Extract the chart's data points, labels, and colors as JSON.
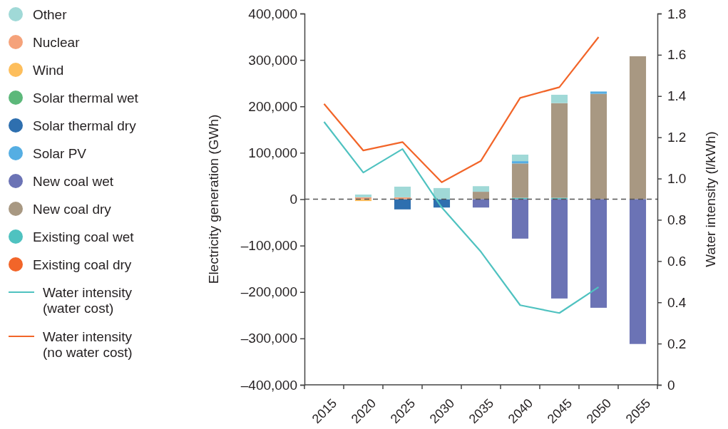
{
  "chart_data": {
    "type": "bar",
    "stacked": true,
    "ylabel": "Electricity generation (GWh)",
    "y2label": "Water intensity (l/kWh)",
    "categories": [
      "2015",
      "2020",
      "2025",
      "2030",
      "2035",
      "2040",
      "2045",
      "2050",
      "2055"
    ],
    "ylim": [
      -400000,
      400000
    ],
    "yticks": [
      {
        "value": -400000,
        "label": "–400,000"
      },
      {
        "value": -300000,
        "label": "–300,000"
      },
      {
        "value": -200000,
        "label": "–200,000"
      },
      {
        "value": -100000,
        "label": "–100,000"
      },
      0,
      {
        "value": 100000,
        "label": "100,000"
      },
      {
        "value": 200000,
        "label": "200,000"
      },
      {
        "value": 300000,
        "label": "300,000"
      },
      {
        "value": 400000,
        "label": "400,000"
      }
    ],
    "y2lim": [
      0,
      1.8
    ],
    "y2ticks": [
      0,
      0.2,
      0.4,
      0.6,
      0.8,
      {
        "value": 1,
        "label": "1.0"
      },
      1.2,
      1.4,
      1.6,
      1.8
    ],
    "ref_lines": [
      {
        "axis": "y",
        "value": 0,
        "color": "#555555",
        "line_style": "dashed"
      }
    ],
    "legend": "left",
    "marker": "none",
    "grid": false,
    "series": [
      {
        "name": "Existing coal dry",
        "color": "#f26529",
        "values": [
          null,
          0,
          0,
          0,
          0,
          0,
          0,
          0,
          0
        ]
      },
      {
        "name": "Existing coal wet",
        "color": "#4fc2c0",
        "values": [
          null,
          0,
          0,
          0,
          0,
          3000,
          3000,
          0,
          0
        ]
      },
      {
        "name": "New coal dry",
        "color": "#a89882",
        "values": [
          null,
          0,
          0,
          0,
          16000,
          74000,
          204000,
          227000,
          308000
        ]
      },
      {
        "name": "New coal wet",
        "color": "#6b73b5",
        "values": [
          null,
          0,
          0,
          0,
          -18000,
          -85000,
          -214000,
          -234000,
          -312000
        ]
      },
      {
        "name": "Solar PV",
        "color": "#55aee3",
        "values": [
          null,
          0,
          0,
          0,
          0,
          5000,
          0,
          5000,
          0
        ]
      },
      {
        "name": "Solar thermal dry",
        "color": "#2e6faf",
        "values": [
          null,
          0,
          -22000,
          -18000,
          0,
          0,
          0,
          0,
          0
        ]
      },
      {
        "name": "Solar thermal wet",
        "color": "#5cb87a",
        "values": [
          null,
          0,
          0,
          0,
          0,
          0,
          0,
          0,
          0
        ]
      },
      {
        "name": "Wind",
        "color": "#fdbe5c",
        "values": [
          null,
          -4000,
          0,
          0,
          0,
          0,
          0,
          0,
          0
        ]
      },
      {
        "name": "Nuclear",
        "color": "#f5a27a",
        "values": [
          null,
          4000,
          4000,
          0,
          0,
          0,
          0,
          0,
          0
        ]
      },
      {
        "name": "Other",
        "color": "#a0d9d7",
        "values": [
          null,
          6000,
          23000,
          24000,
          12000,
          14000,
          18000,
          0,
          0
        ]
      },
      {
        "name": "Water intensity\n(water cost)",
        "type": "line",
        "axis": "y2",
        "color": "#4fc2c0",
        "values": [
          1.275,
          1.029,
          1.143,
          0.86,
          0.645,
          0.386,
          0.348,
          0.474,
          null
        ]
      },
      {
        "name": "Water intensity\n(no water cost)",
        "type": "line",
        "axis": "y2",
        "color": "#f26529",
        "values": [
          1.362,
          1.136,
          1.177,
          0.982,
          1.086,
          1.391,
          1.443,
          1.686,
          null
        ]
      }
    ]
  }
}
